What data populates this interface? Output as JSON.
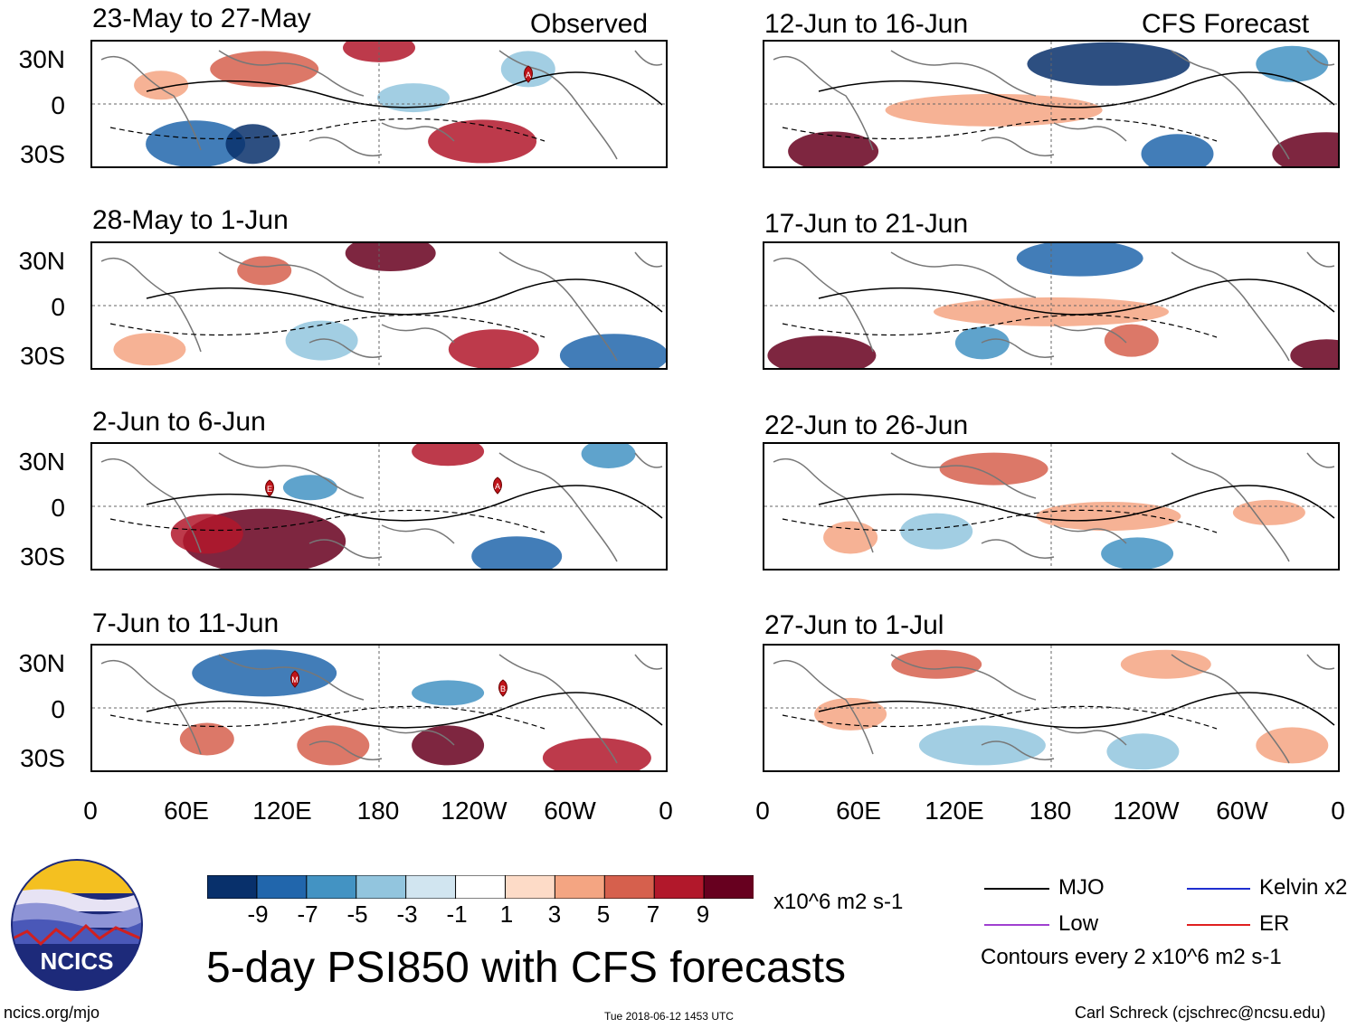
{
  "columns": {
    "left_label": "Observed",
    "right_label": "CFS Forecast"
  },
  "panels": [
    {
      "title": "23-May to 27-May",
      "markers": [
        "A"
      ]
    },
    {
      "title": "28-May to 1-Jun",
      "markers": []
    },
    {
      "title": "2-Jun to 6-Jun",
      "markers": [
        "E",
        "A"
      ]
    },
    {
      "title": "7-Jun to 11-Jun",
      "markers": [
        "M",
        "B"
      ]
    },
    {
      "title": "12-Jun to 16-Jun",
      "markers": []
    },
    {
      "title": "17-Jun to 21-Jun",
      "markers": []
    },
    {
      "title": "22-Jun to 26-Jun",
      "markers": []
    },
    {
      "title": "27-Jun to 1-Jul",
      "markers": []
    }
  ],
  "lat_ticks": [
    "30N",
    "0",
    "30S"
  ],
  "lon_ticks": [
    "0",
    "60E",
    "120E",
    "180",
    "120W",
    "60W",
    "0"
  ],
  "colorbar": {
    "labels": [
      "-9",
      "-7",
      "-5",
      "-3",
      "-1",
      "1",
      "3",
      "5",
      "7",
      "9"
    ],
    "colors": [
      "#08306b",
      "#2166ac",
      "#4393c3",
      "#92c5de",
      "#d1e5f0",
      "#ffffff",
      "#fddbc7",
      "#f4a582",
      "#d6604d",
      "#b2182b",
      "#67001f"
    ],
    "units": "x10^6 m2 s-1"
  },
  "legend": {
    "mjo": {
      "label": "MJO",
      "color": "#000000"
    },
    "kelvin": {
      "label": "Kelvin x2",
      "color": "#1f2fd0"
    },
    "low": {
      "label": "Low",
      "color": "#a040d0"
    },
    "er": {
      "label": "ER",
      "color": "#e02020"
    },
    "contours_note": "Contours every 2 x10^6 m2 s-1"
  },
  "logo": {
    "text": "NCICS"
  },
  "main_title": "5-day PSI850 with CFS forecasts",
  "footer": {
    "url": "ncics.org/mjo",
    "timestamp": "Tue 2018-06-12 1453 UTC",
    "credit": "Carl Schreck (cjschrec@ncsu.edu)"
  }
}
